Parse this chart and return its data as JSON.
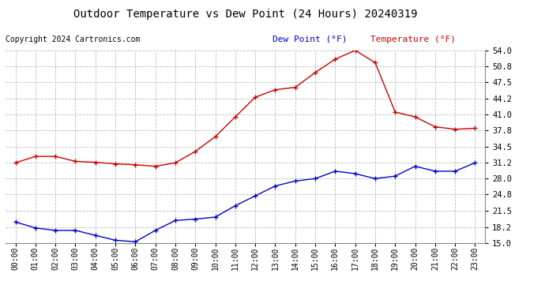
{
  "title": "Outdoor Temperature vs Dew Point (24 Hours) 20240319",
  "copyright": "Copyright 2024 Cartronics.com",
  "legend_dew": "Dew Point (°F)",
  "legend_temp": "Temperature (°F)",
  "hours": [
    "00:00",
    "01:00",
    "02:00",
    "03:00",
    "04:00",
    "05:00",
    "06:00",
    "07:00",
    "08:00",
    "09:00",
    "10:00",
    "11:00",
    "12:00",
    "13:00",
    "14:00",
    "15:00",
    "16:00",
    "17:00",
    "18:00",
    "19:00",
    "20:00",
    "21:00",
    "22:00",
    "23:00"
  ],
  "temperature": [
    31.2,
    32.5,
    32.5,
    31.5,
    31.3,
    31.0,
    30.8,
    30.5,
    31.2,
    33.5,
    36.5,
    40.5,
    44.5,
    46.0,
    46.5,
    49.5,
    52.2,
    54.0,
    51.5,
    41.5,
    40.5,
    38.5,
    38.0,
    38.2
  ],
  "dew_point": [
    19.2,
    18.0,
    17.5,
    17.5,
    16.5,
    15.5,
    15.2,
    17.5,
    19.5,
    19.8,
    20.2,
    22.5,
    24.5,
    26.5,
    27.5,
    28.0,
    29.5,
    29.0,
    28.0,
    28.5,
    30.5,
    29.5,
    29.5,
    31.2
  ],
  "temp_color": "#cc0000",
  "dew_color": "#0000cc",
  "ylim_min": 15.0,
  "ylim_max": 54.0,
  "yticks": [
    15.0,
    18.2,
    21.5,
    24.8,
    28.0,
    31.2,
    34.5,
    37.8,
    41.0,
    44.2,
    47.5,
    50.8,
    54.0
  ],
  "bg_color": "#ffffff",
  "grid_color": "#bbbbbb",
  "title_fontsize": 10,
  "tick_fontsize": 7.5,
  "copyright_fontsize": 7,
  "legend_fontsize": 8
}
